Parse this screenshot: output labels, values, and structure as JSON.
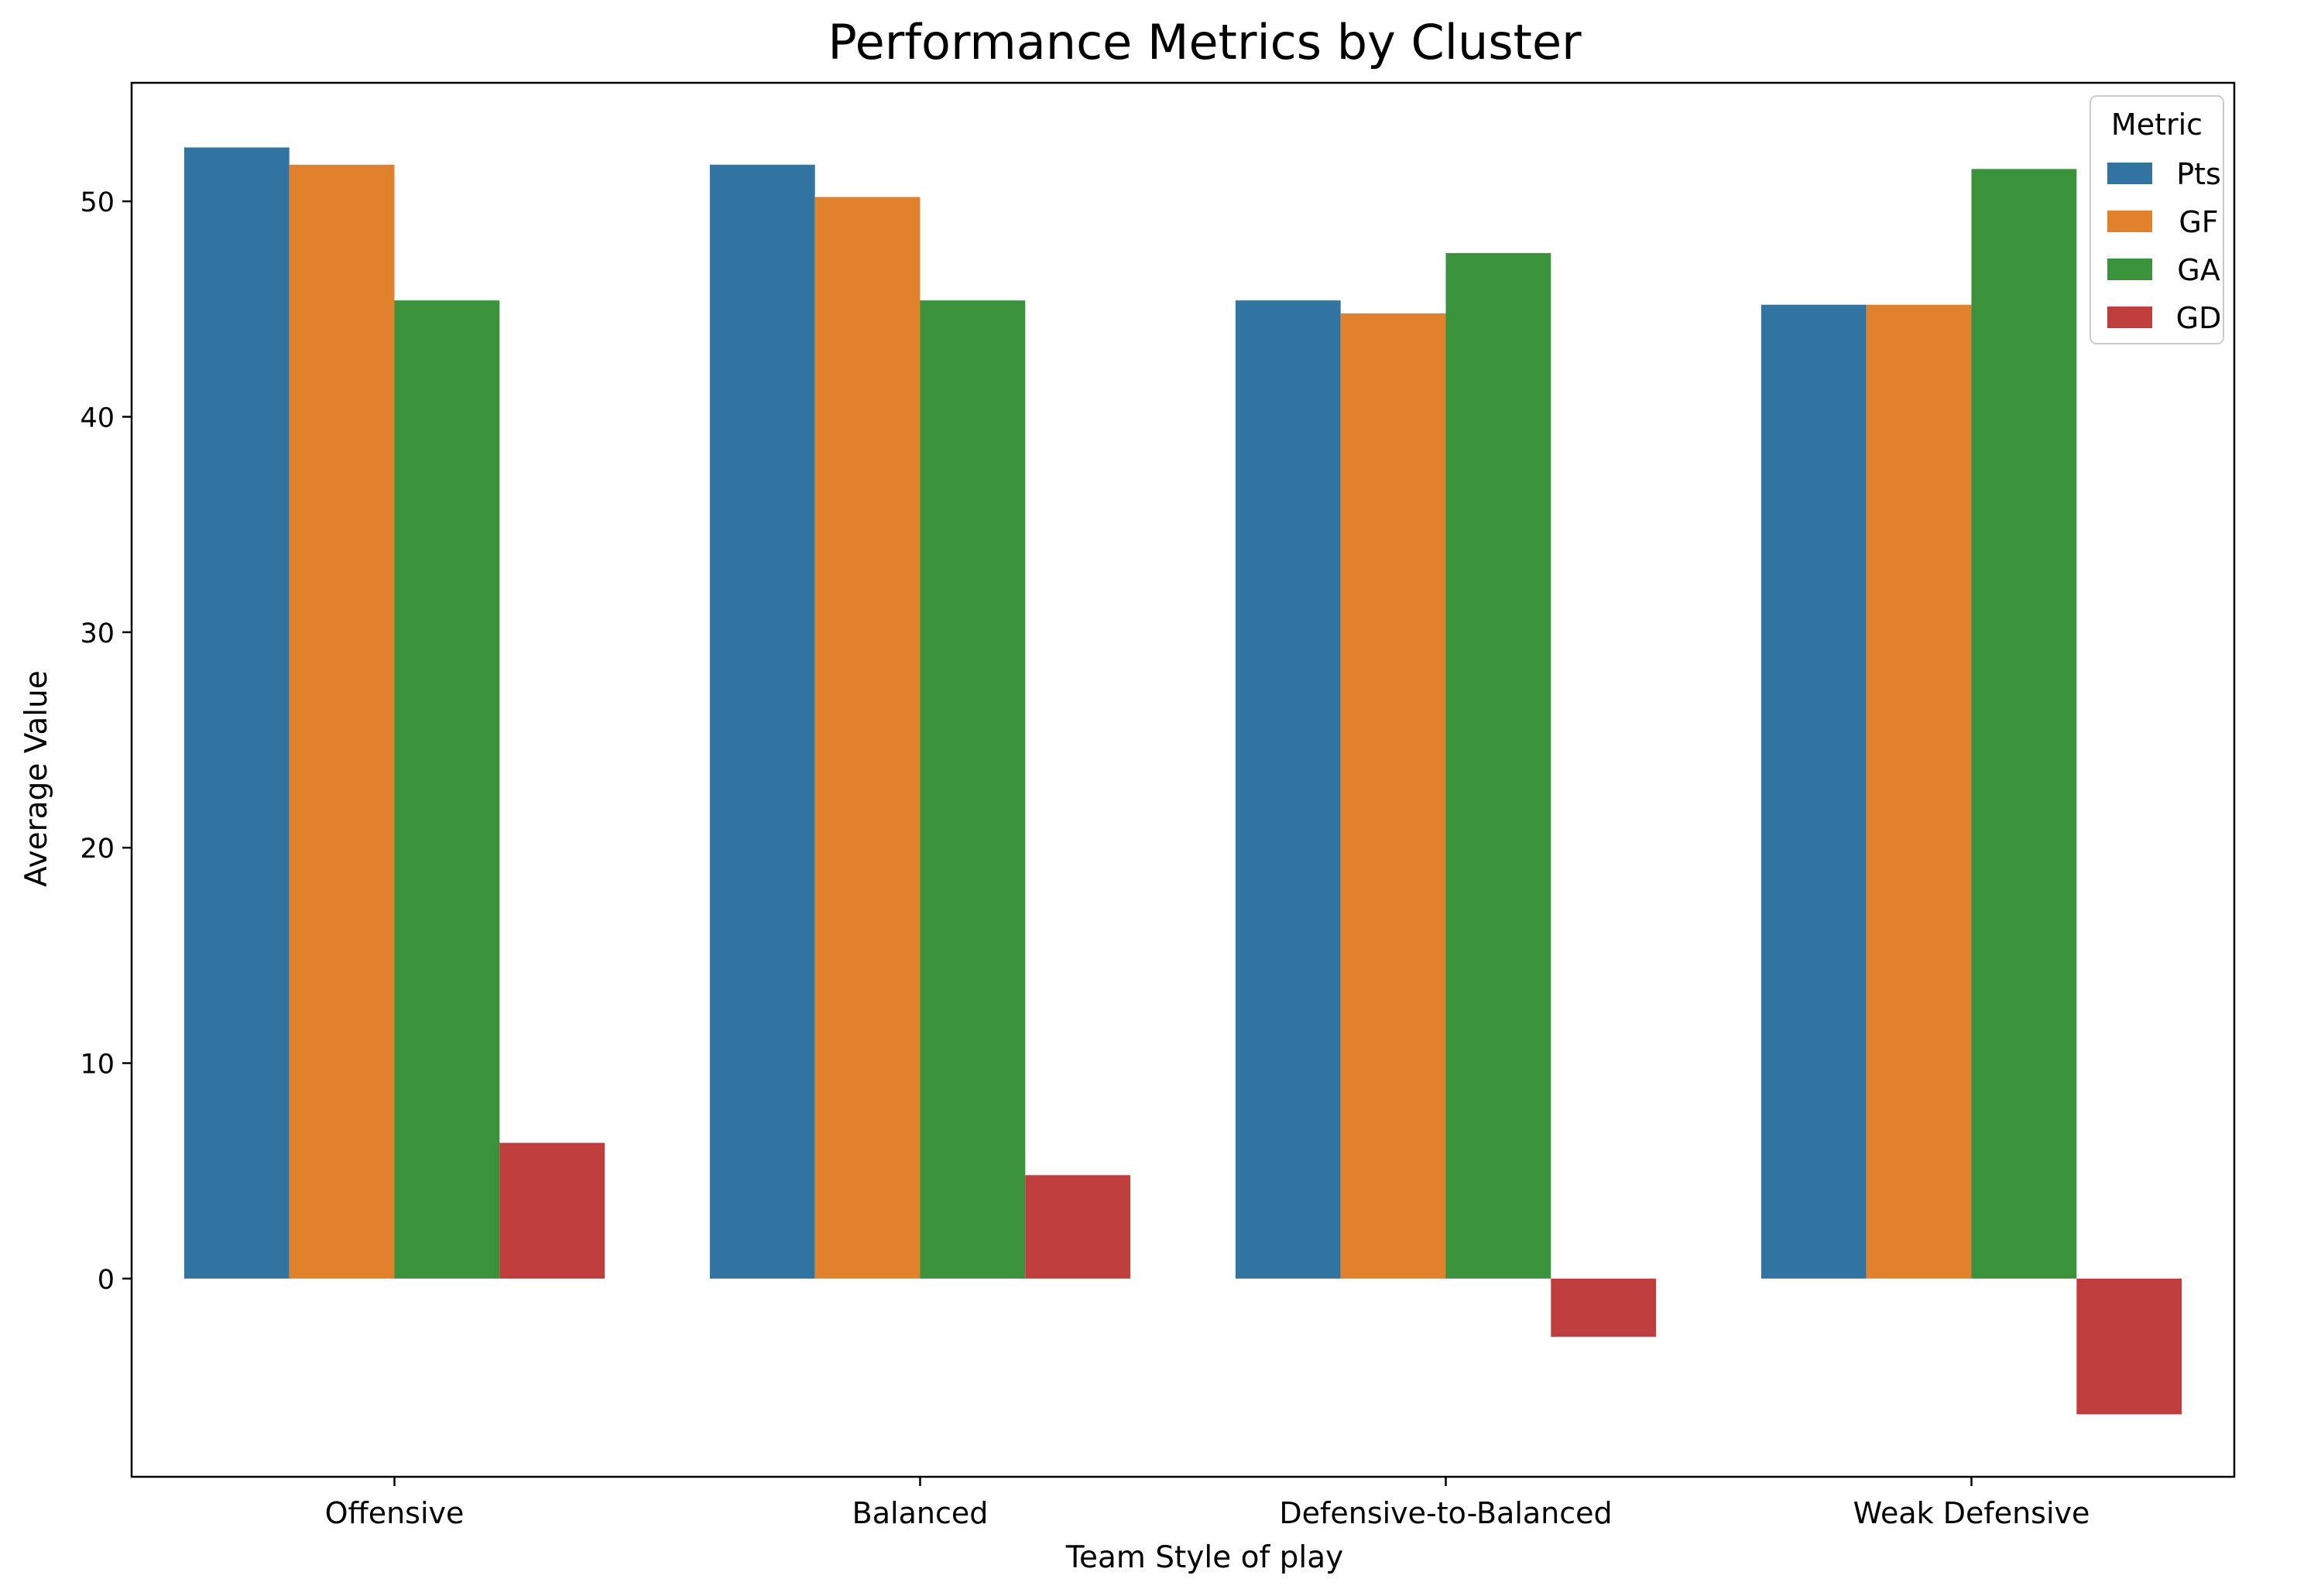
{
  "chart_data": {
    "type": "bar",
    "title": "Performance Metrics by Cluster",
    "xlabel": "Team Style of play",
    "ylabel": "Average Value",
    "ylim": [
      -9.2,
      55.5
    ],
    "yticks": [
      0,
      10,
      20,
      30,
      40,
      50
    ],
    "grid": false,
    "categories": [
      "Offensive",
      "Balanced",
      "Defensive-to-Balanced",
      "Weak Defensive"
    ],
    "legend": {
      "title": "Metric",
      "placement": "top-right"
    },
    "series": [
      {
        "name": "Pts",
        "color": "#3274a1",
        "values": [
          52.5,
          51.7,
          45.4,
          45.2
        ]
      },
      {
        "name": "GF",
        "color": "#e1812c",
        "values": [
          51.7,
          50.2,
          44.8,
          45.2
        ]
      },
      {
        "name": "GA",
        "color": "#3a923a",
        "values": [
          45.4,
          45.4,
          47.6,
          51.5
        ]
      },
      {
        "name": "GD",
        "color": "#c03d3e",
        "values": [
          6.3,
          4.8,
          -2.7,
          -6.3
        ]
      }
    ]
  }
}
